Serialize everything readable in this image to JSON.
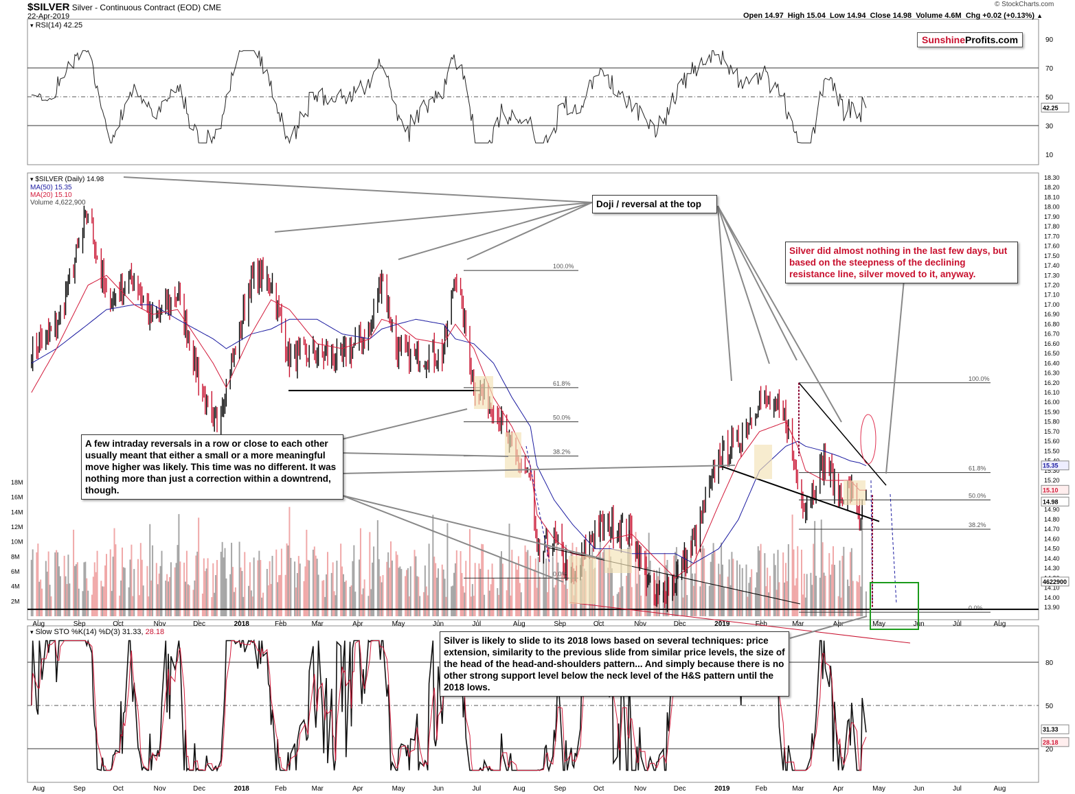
{
  "header": {
    "symbol": "$SILVER",
    "name": "Silver - Continuous Contract (EOD)",
    "exchange": "CME",
    "date": "22-Apr-2019",
    "watermark": "© StockCharts.com",
    "quote": "Open 14.97  High 15.04  Low 14.94  Close 14.98  Volume 4.6M  Chg +0.02 (+0.13%)",
    "quote_arrow": "▲"
  },
  "logo": {
    "part1": "Sunshine",
    "part2": "Profits.com"
  },
  "colors": {
    "price_up": "#000000",
    "price_down": "#c8102e",
    "ma50": "#1a1aa0",
    "ma20": "#d21a3a",
    "vol_up": "#a6a6a6",
    "vol_down": "#f0a8a8",
    "highlight": "#f3e2b5",
    "target_box": "#1a9a1a"
  },
  "rsi": {
    "legend": "RSI(14) 42.25",
    "ticks": [
      "90",
      "70",
      "50",
      "30",
      "10"
    ],
    "last": "42.25"
  },
  "price": {
    "legend": "$SILVER (Daily) 14.98",
    "ma50": "MA(50) 15.35",
    "ma20": "MA(20) 15.10",
    "volume": "Volume 4,622,900",
    "ticks": [
      "18.30",
      "18.20",
      "18.10",
      "18.00",
      "17.90",
      "17.80",
      "17.70",
      "17.60",
      "17.50",
      "17.40",
      "17.30",
      "17.20",
      "17.10",
      "17.00",
      "16.90",
      "16.80",
      "16.70",
      "16.60",
      "16.50",
      "16.40",
      "16.30",
      "16.20",
      "16.10",
      "16.00",
      "15.90",
      "15.80",
      "15.70",
      "15.60",
      "15.50",
      "15.40",
      "15.30",
      "15.20",
      "15.10",
      "15.00",
      "14.90",
      "14.80",
      "14.70",
      "14.60",
      "14.50",
      "14.40",
      "14.30",
      "14.20",
      "14.10",
      "14.00",
      "13.90"
    ],
    "badges": [
      "15.35",
      "15.10",
      "14.98",
      "4622900"
    ],
    "vol_ticks": [
      "18M",
      "16M",
      "14M",
      "12M",
      "10M",
      "8M",
      "6M",
      "4M",
      "2M"
    ],
    "fib_labels": [
      "100.0%",
      "61.8%",
      "50.0%",
      "38.2%",
      "0.0%",
      "100.0%",
      "61.8%",
      "50.0%",
      "38.2%",
      "0.0%"
    ],
    "months": [
      "Aug",
      "Sep",
      "Oct",
      "Nov",
      "Dec",
      "2018",
      "Feb",
      "Mar",
      "Apr",
      "May",
      "Jun",
      "Jul",
      "Aug",
      "Sep",
      "Oct",
      "Nov",
      "Dec",
      "2019",
      "Feb",
      "Mar",
      "Apr",
      "May",
      "Jun",
      "Jul",
      "Aug"
    ]
  },
  "sto": {
    "legend_main": "Slow STO %K(14) %D(3) 31.33,",
    "legend_d": "28.18",
    "ticks": [
      "80",
      "50",
      "20"
    ],
    "badges": [
      "31.33",
      "28.18"
    ],
    "months": [
      "Aug",
      "Sep",
      "Oct",
      "Nov",
      "Dec",
      "2018",
      "Feb",
      "Mar",
      "Apr",
      "May",
      "Jun",
      "Jul",
      "Aug",
      "Sep",
      "Oct",
      "Nov",
      "Dec",
      "2019",
      "Feb",
      "Mar",
      "Apr",
      "May",
      "Jun",
      "Jul",
      "Aug"
    ]
  },
  "annotations": {
    "doji": "Doji / reversal at the top",
    "reversals": "A few intraday reversals in a row or close to each other usually meant that either a small or a more meaningful move higher was likely. This time was no different. It was nothing more than just a correction within a downtrend, though.",
    "silver_nothing": "Silver did almost nothing in the last few days, but based on the steepness of the declining resistance line, silver moved to it, anyway.",
    "slide": "Silver is likely to slide to its 2018 lows based on several techniques: price extension, similarity to the previous slide from similar price levels, the size of the head of the head-and-shoulders pattern... And simply because there is no other strong support level below the neck level of the H&S pattern until the 2018 lows."
  },
  "chart_data": {
    "type": "line",
    "title": "$SILVER Silver - Continuous Contract (EOD) CME",
    "date": "22-Apr-2019",
    "x": [
      "2017-07-27",
      "2017-08-15",
      "2017-09-08",
      "2017-09-22",
      "2017-10-13",
      "2017-10-27",
      "2017-11-15",
      "2017-12-12",
      "2017-12-22",
      "2018-01-10",
      "2018-01-25",
      "2018-02-08",
      "2018-03-01",
      "2018-03-20",
      "2018-04-10",
      "2018-04-19",
      "2018-05-01",
      "2018-05-15",
      "2018-06-05",
      "2018-06-14",
      "2018-06-28",
      "2018-07-13",
      "2018-07-27",
      "2018-08-10",
      "2018-08-15",
      "2018-08-28",
      "2018-09-11",
      "2018-09-28",
      "2018-10-10",
      "2018-10-26",
      "2018-11-13",
      "2018-11-28",
      "2018-12-12",
      "2018-12-31",
      "2019-01-15",
      "2019-01-31",
      "2019-02-20",
      "2019-03-01",
      "2019-03-07",
      "2019-03-21",
      "2019-04-01",
      "2019-04-10",
      "2019-04-17",
      "2019-04-22"
    ],
    "series": [
      {
        "name": "$SILVER (Daily)",
        "values": [
          16.55,
          16.75,
          17.95,
          17.05,
          17.25,
          16.85,
          17.1,
          15.7,
          16.15,
          17.25,
          17.25,
          16.45,
          16.5,
          16.45,
          16.75,
          17.3,
          16.5,
          16.45,
          16.5,
          17.35,
          16.2,
          15.95,
          15.5,
          15.2,
          14.4,
          14.6,
          14.15,
          14.7,
          14.75,
          14.65,
          13.95,
          14.2,
          14.55,
          15.45,
          15.6,
          16.05,
          15.85,
          15.15,
          14.95,
          15.4,
          15.05,
          15.1,
          14.85,
          14.98
        ]
      },
      {
        "name": "MA(50)",
        "values": [
          16.4,
          16.55,
          16.8,
          16.95,
          17.0,
          17.0,
          16.85,
          16.65,
          16.55,
          16.7,
          16.75,
          16.85,
          16.85,
          16.7,
          16.65,
          16.75,
          16.8,
          16.85,
          16.8,
          16.65,
          16.6,
          16.4,
          16.05,
          15.75,
          15.35,
          15.0,
          14.75,
          14.5,
          14.5,
          14.45,
          14.45,
          14.45,
          14.35,
          14.5,
          14.8,
          15.3,
          15.55,
          15.6,
          15.55,
          15.5,
          15.45,
          15.4,
          15.38,
          15.35
        ]
      },
      {
        "name": "MA(20)",
        "values": [
          16.1,
          16.55,
          17.2,
          17.3,
          17.0,
          16.9,
          16.95,
          16.4,
          16.15,
          16.7,
          17.05,
          16.95,
          16.6,
          16.55,
          16.65,
          16.85,
          16.8,
          16.65,
          16.6,
          16.8,
          16.55,
          16.05,
          15.75,
          15.35,
          14.85,
          14.6,
          14.45,
          14.4,
          14.6,
          14.65,
          14.4,
          14.2,
          14.35,
          14.95,
          15.4,
          15.7,
          15.8,
          15.55,
          15.3,
          15.2,
          15.2,
          15.2,
          15.1,
          15.1
        ]
      }
    ],
    "rsi_last": 42.25,
    "stochastic": {
      "k": 31.33,
      "d": 28.18
    },
    "volume_last": 4622900,
    "ylim": [
      13.85,
      18.32
    ],
    "rsi_ylim": [
      0,
      100
    ],
    "volume_ylim": [
      0,
      20000000
    ],
    "fib_levels": {
      "2018": {
        "100.0%": 17.35,
        "61.8%": 16.15,
        "50.0%": 15.8,
        "38.2%": 15.45,
        "0.0%": 14.2
      },
      "2019": {
        "100.0%": 16.2,
        "61.8%": 15.28,
        "50.0%": 15.0,
        "38.2%": 14.7,
        "0.0%": 13.85
      }
    },
    "grid": false,
    "legend": "top-left"
  }
}
